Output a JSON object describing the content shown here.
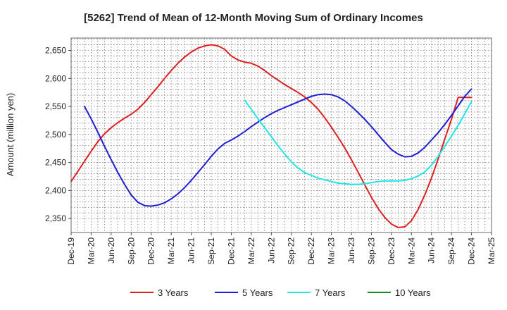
{
  "chart_data": {
    "type": "line",
    "title": "[5262]  Trend of Mean of 12-Month Moving Sum of Ordinary Incomes",
    "xlabel": "",
    "ylabel": "Amount (million yen)",
    "ylim": [
      2325,
      2672
    ],
    "yticks": [
      2350,
      2400,
      2450,
      2500,
      2550,
      2600,
      2650
    ],
    "ytick_labels": [
      "2,350",
      "2,400",
      "2,450",
      "2,500",
      "2,550",
      "2,600",
      "2,650"
    ],
    "xlim": [
      0,
      63
    ],
    "xticks": [
      0,
      3,
      6,
      9,
      12,
      15,
      18,
      21,
      24,
      27,
      30,
      33,
      36,
      39,
      42,
      45,
      48,
      51,
      54,
      57,
      60,
      63
    ],
    "xtick_labels": [
      "Dec-19",
      "Mar-20",
      "Jun-20",
      "Sep-20",
      "Dec-20",
      "Mar-21",
      "Jun-21",
      "Sep-21",
      "Dec-21",
      "Mar-22",
      "Jun-22",
      "Sep-22",
      "Dec-22",
      "Mar-23",
      "Jun-23",
      "Sep-23",
      "Dec-23",
      "Mar-24",
      "Jun-24",
      "Sep-24",
      "Dec-24",
      "Mar-25"
    ],
    "grid": true,
    "legend_position": "bottom",
    "series": [
      {
        "name": "3 Years",
        "color": "#e02020",
        "x": [
          0,
          1,
          2,
          3,
          4,
          5,
          6,
          7,
          8,
          9,
          10,
          11,
          12,
          13,
          14,
          15,
          16,
          17,
          18,
          19,
          20,
          21,
          22,
          23,
          24,
          25,
          26,
          27,
          28,
          29,
          30,
          31,
          32,
          33,
          34,
          35,
          36,
          37,
          38,
          39,
          40,
          41,
          42,
          43,
          44,
          45,
          46,
          47,
          48,
          49,
          50,
          51,
          52,
          53,
          54,
          55,
          56,
          57,
          58,
          59,
          60
        ],
        "values": [
          2416,
          2434,
          2452,
          2470,
          2487,
          2501,
          2512,
          2521,
          2529,
          2536,
          2545,
          2557,
          2571,
          2585,
          2600,
          2614,
          2627,
          2638,
          2647,
          2654,
          2658,
          2660,
          2658,
          2652,
          2640,
          2633,
          2629,
          2627,
          2622,
          2614,
          2605,
          2597,
          2589,
          2582,
          2575,
          2567,
          2557,
          2545,
          2530,
          2513,
          2495,
          2476,
          2455,
          2433,
          2410,
          2388,
          2368,
          2352,
          2340,
          2334,
          2335,
          2346,
          2366,
          2392,
          2422,
          2456,
          2492,
          2527,
          2566,
          2566,
          2566
        ]
      },
      {
        "name": "5 Years",
        "color": "#1f1fd6",
        "x": [
          2,
          3,
          4,
          5,
          6,
          7,
          8,
          9,
          10,
          11,
          12,
          13,
          14,
          15,
          16,
          17,
          18,
          19,
          20,
          21,
          22,
          23,
          24,
          25,
          26,
          27,
          28,
          29,
          30,
          31,
          32,
          33,
          34,
          35,
          36,
          37,
          38,
          39,
          40,
          41,
          42,
          43,
          44,
          45,
          46,
          47,
          48,
          49,
          50,
          51,
          52,
          53,
          54,
          55,
          56,
          57,
          58,
          59,
          60
        ],
        "values": [
          2550,
          2528,
          2504,
          2479,
          2455,
          2432,
          2411,
          2392,
          2379,
          2373,
          2372,
          2374,
          2378,
          2385,
          2394,
          2405,
          2418,
          2432,
          2446,
          2461,
          2474,
          2484,
          2490,
          2497,
          2505,
          2514,
          2522,
          2530,
          2537,
          2543,
          2548,
          2553,
          2558,
          2563,
          2568,
          2571,
          2572,
          2571,
          2567,
          2560,
          2550,
          2539,
          2527,
          2514,
          2500,
          2486,
          2473,
          2465,
          2460,
          2461,
          2467,
          2477,
          2490,
          2503,
          2518,
          2534,
          2551,
          2568,
          2581
        ]
      },
      {
        "name": "7 Years",
        "color": "#22e6e6",
        "x": [
          26,
          27,
          28,
          29,
          30,
          31,
          32,
          33,
          34,
          35,
          36,
          37,
          38,
          39,
          40,
          41,
          42,
          43,
          44,
          45,
          46,
          47,
          48,
          49,
          50,
          51,
          52,
          53,
          54,
          55,
          56,
          57,
          58,
          59,
          60
        ],
        "values": [
          2561,
          2545,
          2528,
          2512,
          2496,
          2480,
          2465,
          2451,
          2440,
          2432,
          2427,
          2422,
          2419,
          2416,
          2413,
          2412,
          2411,
          2411,
          2412,
          2414,
          2416,
          2417,
          2417,
          2417,
          2418,
          2421,
          2426,
          2433,
          2445,
          2461,
          2479,
          2497,
          2516,
          2537,
          2559
        ]
      },
      {
        "name": "10 Years",
        "color": "#1a8c1a",
        "x": [],
        "values": []
      }
    ]
  }
}
